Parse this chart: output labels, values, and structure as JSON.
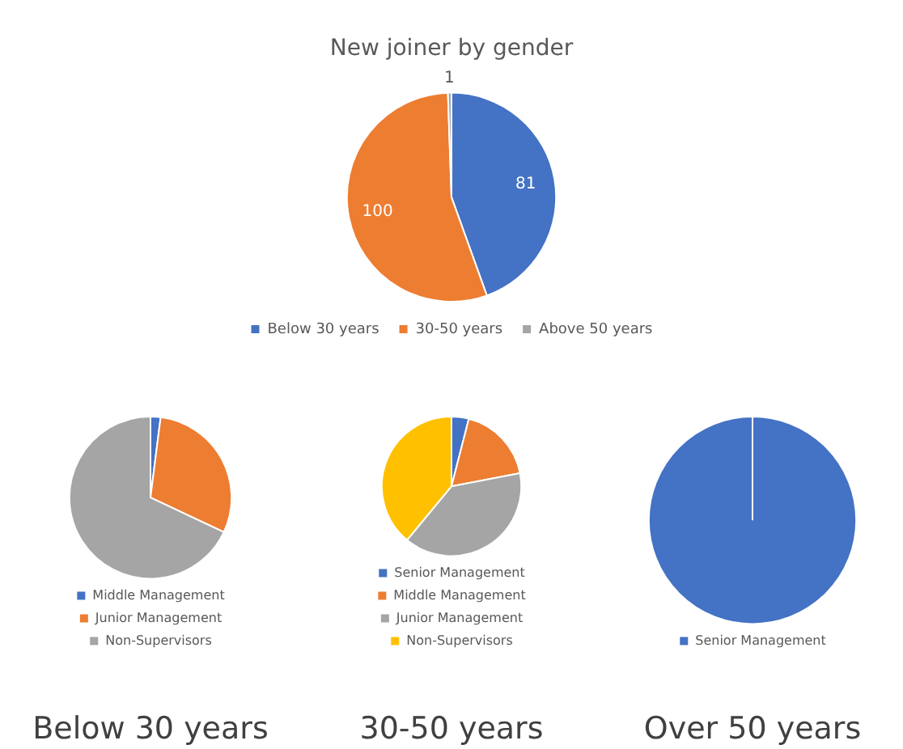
{
  "chart_data": [
    {
      "type": "pie",
      "title": "New joiner by gender",
      "categories": [
        "Below 30 years",
        "30-50 years",
        "Above 50 years"
      ],
      "values": [
        81,
        100,
        1
      ],
      "colors": [
        "#4472c4",
        "#ed7d31",
        "#a5a5a5"
      ],
      "legend": "bottom",
      "data_labels": true
    },
    {
      "type": "pie",
      "title": "Below 30 years",
      "categories": [
        "Middle Management",
        "Junior Management",
        "Non-Supervisors"
      ],
      "values": [
        2,
        30,
        68
      ],
      "colors": [
        "#4472c4",
        "#ed7d31",
        "#a5a5a5"
      ],
      "legend": "bottom"
    },
    {
      "type": "pie",
      "title": "30-50 years",
      "categories": [
        "Senior Management",
        "Middle Management",
        "Junior Management",
        "Non-Supervisors"
      ],
      "values": [
        4,
        18,
        39,
        39
      ],
      "colors": [
        "#4472c4",
        "#ed7d31",
        "#a5a5a5",
        "#ffc000"
      ],
      "legend": "bottom"
    },
    {
      "type": "pie",
      "title": "Over 50 years",
      "categories": [
        "Senior Management"
      ],
      "values": [
        100
      ],
      "colors": [
        "#4472c4"
      ],
      "legend": "bottom"
    }
  ]
}
